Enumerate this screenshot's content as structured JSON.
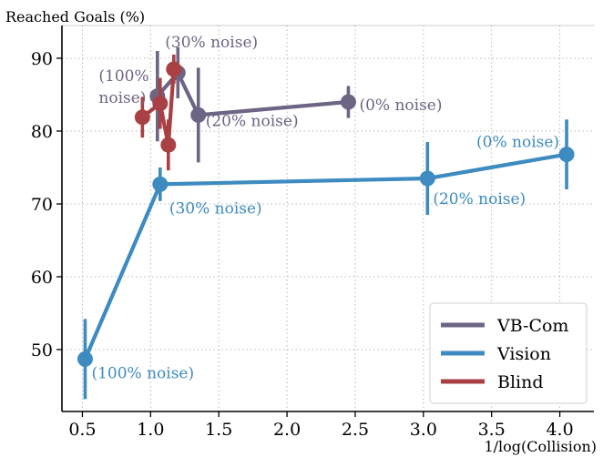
{
  "chart_data": {
    "type": "line",
    "title": "",
    "xlabel": "1/log(Collision)",
    "ylabel": "Reached Goals (%)",
    "xlim": [
      0.35,
      4.25
    ],
    "ylim": [
      41.5,
      94.5
    ],
    "xticks": [
      0.5,
      1.0,
      1.5,
      2.0,
      2.5,
      3.0,
      3.5,
      4.0
    ],
    "xtick_labels": [
      "0.5",
      "1.0",
      "1.5",
      "2.0",
      "2.5",
      "3.0",
      "3.5",
      "4.0"
    ],
    "yticks": [
      50,
      60,
      70,
      80,
      90
    ],
    "ytick_labels": [
      "50",
      "60",
      "70",
      "80",
      "90"
    ],
    "grid": true,
    "legend_position": "bottom-right",
    "series": [
      {
        "name": "VB-Com",
        "color": "#6e6483",
        "points": [
          {
            "x": 1.05,
            "y": 84.8,
            "err": 6.2,
            "label": ""
          },
          {
            "x": 1.2,
            "y": 88.0,
            "err": 3.5,
            "label": "(30% noise)"
          },
          {
            "x": 1.35,
            "y": 82.2,
            "err": 6.5,
            "label": "(20% noise)"
          },
          {
            "x": 2.45,
            "y": 84.0,
            "err": 2.2,
            "label": "(0% noise)"
          }
        ]
      },
      {
        "name": "Vision",
        "color": "#3d8bc0",
        "points": [
          {
            "x": 0.52,
            "y": 48.7,
            "err": 5.5,
            "label": "(100% noise)"
          },
          {
            "x": 1.07,
            "y": 72.7,
            "err": 2.3,
            "label": "(30% noise)"
          },
          {
            "x": 3.03,
            "y": 73.5,
            "err": 5.0,
            "label": "(20% noise)"
          },
          {
            "x": 4.05,
            "y": 76.8,
            "err": 4.8,
            "label": "(0% noise)"
          }
        ]
      },
      {
        "name": "Blind",
        "color": "#a94043",
        "points": [
          {
            "x": 0.94,
            "y": 81.9,
            "err": 2.8,
            "label": ""
          },
          {
            "x": 1.07,
            "y": 83.8,
            "err": 3.5,
            "label": ""
          },
          {
            "x": 1.13,
            "y": 78.1,
            "err": 3.5,
            "label": ""
          },
          {
            "x": 1.17,
            "y": 88.5,
            "err": 2.0,
            "label": ""
          }
        ]
      }
    ],
    "annotations": [
      {
        "text": "(100%",
        "x": 0.62,
        "y": 86.9,
        "color": "#6e6483"
      },
      {
        "text": "noise)",
        "x": 0.62,
        "y": 83.9,
        "color": "#6e6483"
      }
    ]
  }
}
